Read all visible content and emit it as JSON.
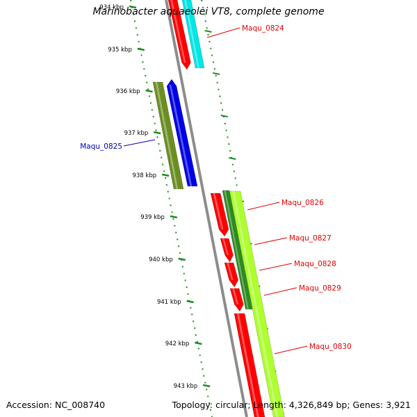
{
  "title": "Marinobacter aquaeolei VT8, complete genome",
  "footer": {
    "accession": "Accession: NC_008740",
    "stats": "Topology: circular; Length: 4,326,849 bp; Genes: 3,921"
  },
  "colors": {
    "backbone": "#8c8c8c",
    "ruler_tick": "#1e8c1e",
    "label_forward": "#e00000",
    "label_reverse": "#0000b4"
  },
  "ruler": {
    "ticks": [
      {
        "label": "934 kbp",
        "faded": true
      },
      {
        "label": "935 kbp"
      },
      {
        "label": "936 kbp"
      },
      {
        "label": "937 kbp"
      },
      {
        "label": "938 kbp"
      },
      {
        "label": "939 kbp"
      },
      {
        "label": "940 kbp"
      },
      {
        "label": "941 kbp"
      },
      {
        "label": "942 kbp"
      },
      {
        "label": "943 kbp"
      }
    ]
  },
  "gene_labels": [
    {
      "text": "Maqu_0824",
      "strand": "forward"
    },
    {
      "text": "Maqu_0825",
      "strand": "reverse"
    },
    {
      "text": "Maqu_0826",
      "strand": "forward"
    },
    {
      "text": "Maqu_0827",
      "strand": "forward"
    },
    {
      "text": "Maqu_0828",
      "strand": "forward"
    },
    {
      "text": "Maqu_0829",
      "strand": "forward"
    },
    {
      "text": "Maqu_0830",
      "strand": "forward"
    }
  ],
  "features": [
    {
      "name": "cds-forward-0824",
      "color": "#ff0000"
    },
    {
      "name": "cds-track-0824",
      "color": "#00e5e5"
    },
    {
      "name": "cds-reverse-0825",
      "color": "#0000e6"
    },
    {
      "name": "cds-track-0825",
      "color": "#6b8e23"
    },
    {
      "name": "cds-forward-0826",
      "color": "#ff0000"
    },
    {
      "name": "cds-forward-0827",
      "color": "#ff0000"
    },
    {
      "name": "cds-forward-0828",
      "color": "#ff0000"
    },
    {
      "name": "cds-forward-0829",
      "color": "#ff0000"
    },
    {
      "name": "cds-forward-0830",
      "color": "#ff0000"
    },
    {
      "name": "track-light-green",
      "color": "#adff2f"
    },
    {
      "name": "track-dark-green",
      "color": "#2e8b22"
    }
  ]
}
